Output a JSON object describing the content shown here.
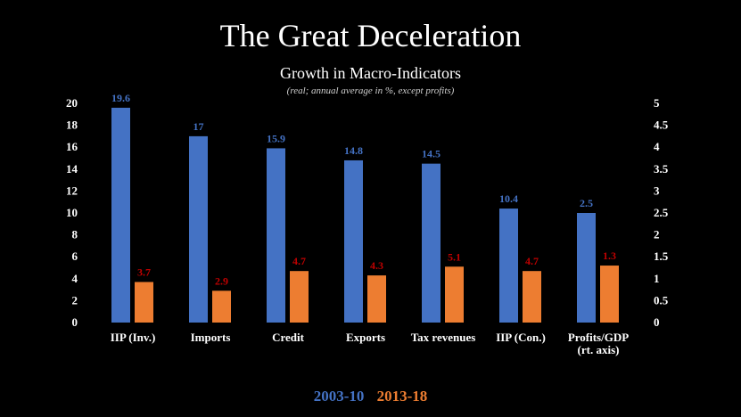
{
  "chart_data": {
    "type": "bar",
    "title": "The Great Deceleration",
    "subtitle": "Growth in Macro-Indicators",
    "note": "(real; annual average in %, except profits)",
    "categories": [
      [
        "IIP (Inv.)"
      ],
      [
        "Imports"
      ],
      [
        "Credit"
      ],
      [
        "Exports"
      ],
      [
        "Tax revenues"
      ],
      [
        "IIP (Con.)"
      ],
      [
        "Profits/GDP",
        "(rt. axis)"
      ]
    ],
    "series": [
      {
        "name": "2003-10",
        "color": "#4472C4",
        "label_color": "#4472C4",
        "values": [
          19.6,
          17,
          15.9,
          14.8,
          14.5,
          10.4,
          2.5
        ],
        "value_labels": [
          "19.6",
          "17",
          "15.9",
          "14.8",
          "14.5",
          "10.4",
          "2.5"
        ],
        "axis": [
          "left",
          "left",
          "left",
          "left",
          "left",
          "left",
          "right"
        ]
      },
      {
        "name": "2013-18",
        "color": "#ED7D31",
        "label_color": "#C00000",
        "values": [
          3.7,
          2.9,
          4.7,
          4.3,
          5.1,
          4.7,
          1.3
        ],
        "value_labels": [
          "3.7",
          "2.9",
          "4.7",
          "4.3",
          "5.1",
          "4.7",
          "1.3"
        ],
        "axis": [
          "left",
          "left",
          "left",
          "left",
          "left",
          "left",
          "right"
        ]
      }
    ],
    "y_left": {
      "ylim": [
        0,
        20
      ],
      "ticks": [
        "0",
        "2",
        "4",
        "6",
        "8",
        "10",
        "12",
        "14",
        "16",
        "18",
        "20"
      ]
    },
    "y_right": {
      "ylim": [
        0,
        5
      ],
      "ticks": [
        "0",
        "0.5",
        "1",
        "1.5",
        "2",
        "2.5",
        "3",
        "3.5",
        "4",
        "4.5",
        "5"
      ]
    },
    "legend": {
      "placement": "bottom-center"
    },
    "grid": false
  }
}
